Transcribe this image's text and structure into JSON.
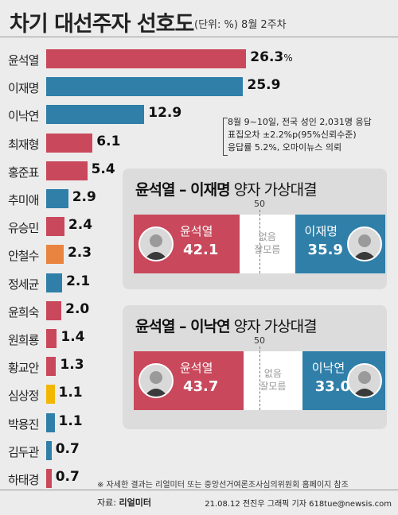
{
  "title": "차기 대선주자 선호도",
  "subtitle": "(단위: %) 8월 2주차",
  "chart_data": {
    "type": "bar",
    "orientation": "horizontal",
    "categories": [
      "윤석열",
      "이재명",
      "이낙연",
      "최재형",
      "홍준표",
      "추미애",
      "유승민",
      "안철수",
      "정세균",
      "윤희숙",
      "원희룡",
      "황교안",
      "심상정",
      "박용진",
      "김두관",
      "하태경"
    ],
    "values": [
      26.3,
      25.9,
      12.9,
      6.1,
      5.4,
      2.9,
      2.4,
      2.3,
      2.1,
      2.0,
      1.4,
      1.3,
      1.1,
      1.1,
      0.7,
      0.7
    ],
    "value_labels": [
      "26.3",
      "25.9",
      "12.9",
      "6.1",
      "5.4",
      "2.9",
      "2.4",
      "2.3",
      "2.1",
      "2.0",
      "1.4",
      "1.3",
      "1.1",
      "1.1",
      "0.7",
      "0.7"
    ],
    "first_unit": "%",
    "xlim": [
      0,
      27
    ],
    "party_colors": {
      "red": "#c9485b",
      "blue": "#2f7fa9",
      "orange": "#e8843f",
      "yellow": "#f2b705"
    },
    "bar_colors": [
      "#c9485b",
      "#2f7fa9",
      "#2f7fa9",
      "#c9485b",
      "#c9485b",
      "#2f7fa9",
      "#c9485b",
      "#e8843f",
      "#2f7fa9",
      "#c9485b",
      "#c9485b",
      "#c9485b",
      "#f2b705",
      "#2f7fa9",
      "#2f7fa9",
      "#c9485b"
    ],
    "grid": false,
    "legend": "none"
  },
  "survey_note": [
    "8월 9~10일, 전국 성인 2,031명 응답",
    "표집오차 ±2.2%p(95%신뢰수준)",
    "응답률 5.2%, 오마이뉴스 의뢰"
  ],
  "matchups": [
    {
      "title_bold": "윤석열 – 이재명",
      "title_rest": " 양자 가상대결",
      "mark": "50",
      "left": {
        "name": "윤석열",
        "value": 42.1,
        "label": "42.1",
        "color": "#c9485b"
      },
      "none_label": [
        "없음",
        "잘모름"
      ],
      "right": {
        "name": "이재명",
        "value": 35.9,
        "label": "35.9",
        "color": "#2f7fa9"
      }
    },
    {
      "title_bold": "윤석열 – 이낙연",
      "title_rest": " 양자 가상대결",
      "mark": "50",
      "left": {
        "name": "윤석열",
        "value": 43.7,
        "label": "43.7",
        "color": "#c9485b"
      },
      "none_label": [
        "없음",
        "잘모름"
      ],
      "right": {
        "name": "이낙연",
        "value": 33.0,
        "label": "33.0",
        "color": "#2f7fa9"
      }
    }
  ],
  "footnote": "※ 자세한 결과는 리얼미터 또는 중앙선거여론조사심의위원회 홈페이지 참조",
  "source_prefix": "자료: ",
  "source_name": "리얼미터",
  "credit": "21.08.12 전진우 그래픽 기자 618tue@newsis.com"
}
